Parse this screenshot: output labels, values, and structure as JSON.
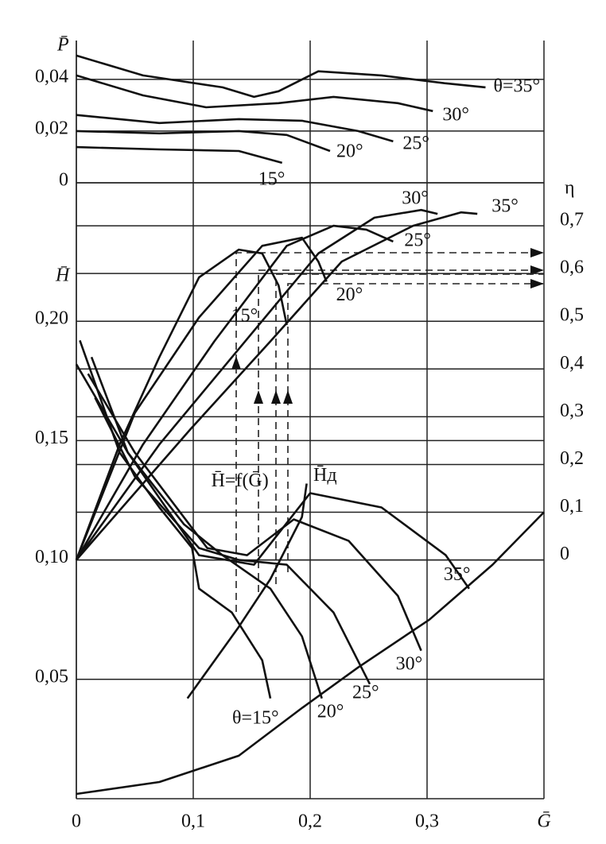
{
  "chart_data": [
    {
      "type": "line",
      "y_label": "P̄",
      "color": "#111",
      "xlim": [
        0,
        0.4
      ],
      "ylim": [
        0,
        0.055
      ],
      "yticks": [
        {
          "value": 0,
          "label": "0"
        },
        {
          "value": 0.02,
          "label": "0,02"
        },
        {
          "value": 0.04,
          "label": "0,04"
        }
      ],
      "series": [
        {
          "name": "θ=35°",
          "x": [
            0,
            0.057,
            0.125,
            0.152,
            0.173,
            0.207,
            0.261,
            0.315,
            0.35
          ],
          "values": [
            0.0492,
            0.0415,
            0.0369,
            0.0332,
            0.0354,
            0.0431,
            0.0415,
            0.0385,
            0.0369
          ]
        },
        {
          "name": "30°",
          "x": [
            0,
            0.057,
            0.111,
            0.173,
            0.22,
            0.275,
            0.305
          ],
          "values": [
            0.0415,
            0.0338,
            0.0292,
            0.0308,
            0.0332,
            0.0308,
            0.0277
          ]
        },
        {
          "name": "25°",
          "x": [
            0,
            0.071,
            0.139,
            0.193,
            0.241,
            0.271
          ],
          "values": [
            0.0262,
            0.0231,
            0.0246,
            0.024,
            0.02,
            0.016
          ]
        },
        {
          "name": "20°",
          "x": [
            0,
            0.071,
            0.139,
            0.18,
            0.217
          ],
          "values": [
            0.02,
            0.0191,
            0.02,
            0.0185,
            0.0123
          ]
        },
        {
          "name": "15°",
          "x": [
            0,
            0.071,
            0.139,
            0.176
          ],
          "values": [
            0.0138,
            0.0129,
            0.0123,
            0.0077
          ]
        }
      ]
    },
    {
      "type": "line",
      "y_label": "H̄",
      "y2_label": "η",
      "x_label": "Ḡ",
      "color": "#111",
      "xlim": [
        0,
        0.4
      ],
      "xticks": [
        {
          "value": 0,
          "label": "0"
        },
        {
          "value": 0.1,
          "label": "0,1"
        },
        {
          "value": 0.2,
          "label": "0,2"
        },
        {
          "value": 0.3,
          "label": "0,3"
        }
      ],
      "ylim": [
        0,
        0.258
      ],
      "yticks": [
        {
          "value": 0.05,
          "label": "0,05"
        },
        {
          "value": 0.1,
          "label": "0,10"
        },
        {
          "value": 0.15,
          "label": "0,15"
        },
        {
          "value": 0.2,
          "label": "0,20"
        }
      ],
      "y2lim": [
        -0.5,
        0.79
      ],
      "y2ticks": [
        0,
        {
          "value": 0.1,
          "label": "0,1"
        },
        {
          "value": 0.2,
          "label": "0,2"
        },
        {
          "value": 0.3,
          "label": "0,3"
        },
        {
          "value": 0.4,
          "label": "0,4"
        },
        {
          "value": 0.5,
          "label": "0,5"
        },
        {
          "value": 0.6,
          "label": "0,6"
        },
        {
          "value": 0.7,
          "label": "0,7"
        }
      ],
      "series": [
        {
          "name": "θ=15°",
          "x": [
            0.003,
            0.037,
            0.071,
            0.099,
            0.105,
            0.133,
            0.159,
            0.166
          ],
          "values": [
            0.192,
            0.145,
            0.122,
            0.105,
            0.088,
            0.078,
            0.058,
            0.042
          ]
        },
        {
          "name": "20°",
          "x": [
            0.013,
            0.044,
            0.092,
            0.125,
            0.166,
            0.193,
            0.21
          ],
          "values": [
            0.185,
            0.145,
            0.115,
            0.102,
            0.088,
            0.068,
            0.042
          ]
        },
        {
          "name": "25°",
          "x": [
            0.016,
            0.05,
            0.105,
            0.139,
            0.18,
            0.22,
            0.251
          ],
          "values": [
            0.168,
            0.135,
            0.105,
            0.1,
            0.098,
            0.078,
            0.048
          ]
        },
        {
          "name": "30°",
          "x": [
            0.01,
            0.05,
            0.112,
            0.146,
            0.186,
            0.233,
            0.275,
            0.295
          ],
          "values": [
            0.178,
            0.145,
            0.105,
            0.102,
            0.117,
            0.108,
            0.085,
            0.062
          ]
        },
        {
          "name": "35°",
          "x": [
            0,
            0.044,
            0.105,
            0.152,
            0.2,
            0.261,
            0.316,
            0.336
          ],
          "values": [
            0.182,
            0.145,
            0.102,
            0.098,
            0.128,
            0.122,
            0.102,
            0.088
          ]
        },
        {
          "name": "H̄=f(Ḡ)",
          "x": [
            0.095,
            0.139,
            0.166,
            0.193,
            0.197
          ],
          "values": [
            0.042,
            0.072,
            0.092,
            0.118,
            0.132
          ]
        },
        {
          "name": "H̄д",
          "x": [
            0,
            0.071,
            0.139,
            0.193,
            0.241,
            0.302,
            0.356,
            0.4
          ],
          "values": [
            0.002,
            0.007,
            0.018,
            0.038,
            0.055,
            0.075,
            0.098,
            0.12
          ]
        },
        {
          "name": "15°",
          "axis": "y2",
          "x": [
            0,
            0.037,
            0.071,
            0.105,
            0.139,
            0.159,
            0.173,
            0.18
          ],
          "values": [
            0,
            0.242,
            0.425,
            0.592,
            0.65,
            0.642,
            0.575,
            0.492
          ]
        },
        {
          "name": "20°",
          "axis": "y2",
          "x": [
            0,
            0.05,
            0.105,
            0.159,
            0.193,
            0.207,
            0.214
          ],
          "values": [
            0,
            0.308,
            0.508,
            0.658,
            0.675,
            0.625,
            0.583
          ]
        },
        {
          "name": "25°",
          "axis": "y2",
          "x": [
            0,
            0.057,
            0.118,
            0.18,
            0.22,
            0.248,
            0.271
          ],
          "values": [
            0,
            0.242,
            0.458,
            0.658,
            0.7,
            0.692,
            0.667
          ]
        },
        {
          "name": "30°",
          "axis": "y2",
          "x": [
            0,
            0.071,
            0.139,
            0.207,
            0.255,
            0.295,
            0.309
          ],
          "values": [
            0,
            0.242,
            0.442,
            0.642,
            0.717,
            0.733,
            0.725
          ]
        },
        {
          "name": "35°",
          "axis": "y2",
          "x": [
            0,
            0.098,
            0.166,
            0.227,
            0.288,
            0.329,
            0.343
          ],
          "values": [
            0,
            0.275,
            0.458,
            0.625,
            0.7,
            0.728,
            0.725
          ]
        }
      ]
    }
  ]
}
